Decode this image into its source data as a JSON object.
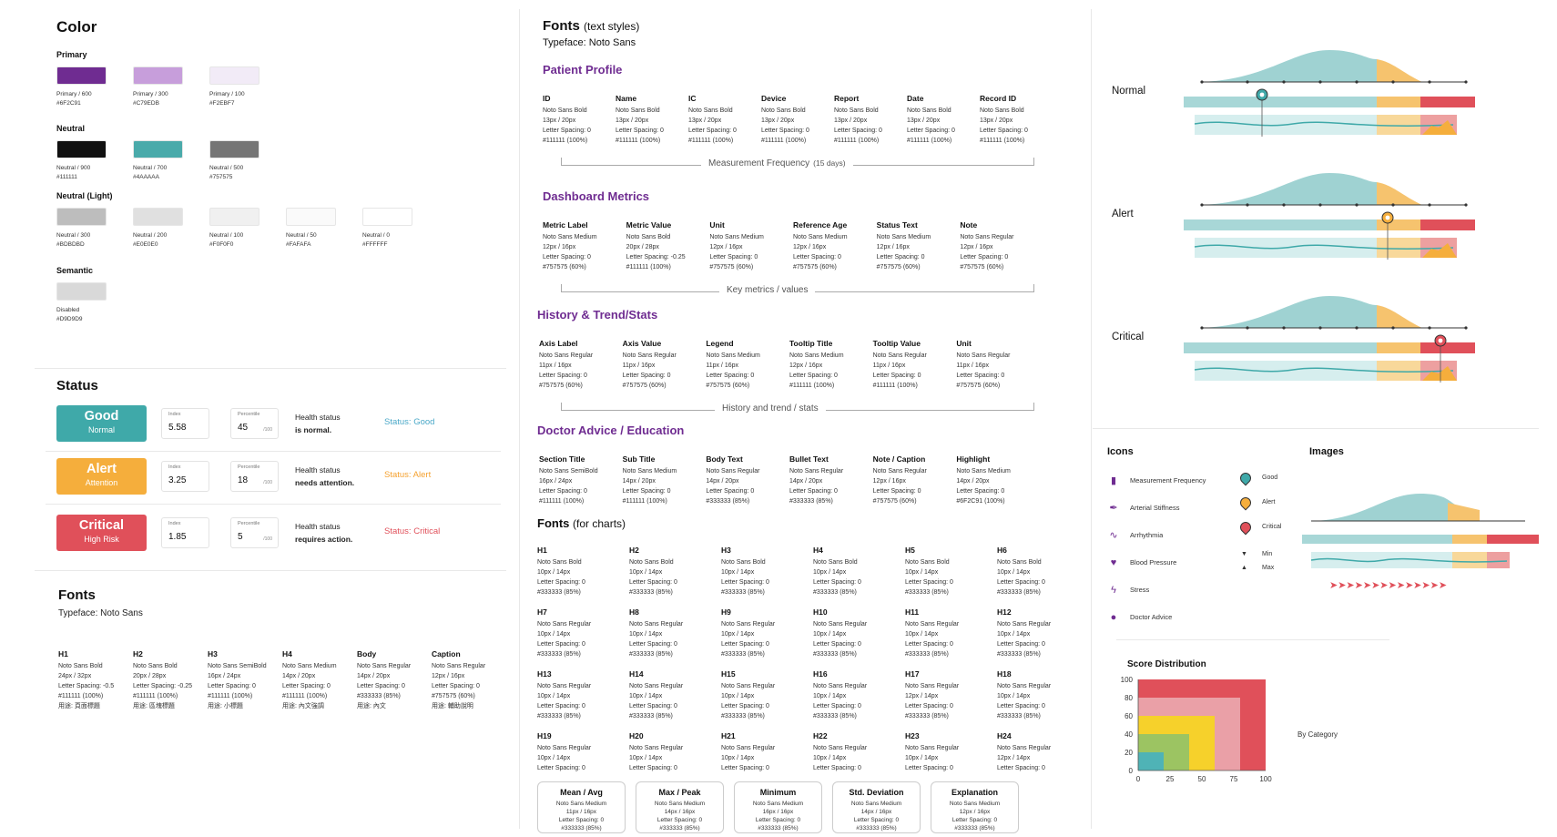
{
  "color": {
    "title": "Color",
    "groups": [
      {
        "label": "Primary",
        "swatches": [
          {
            "name": "Primary / 600",
            "hex": "#6F2C91"
          },
          {
            "name": "Primary / 300",
            "hex": "#C79EDB"
          },
          {
            "name": "Primary / 100",
            "hex": "#F2EBF7"
          }
        ]
      },
      {
        "label": "Neutral",
        "swatches": [
          {
            "name": "Neutral / 900",
            "hex": "#111111"
          },
          {
            "name": "Neutral / 700",
            "hex": "#4AAAAA"
          },
          {
            "name": "Neutral / 500",
            "hex": "#757575"
          }
        ]
      },
      {
        "label": "Neutral (Light)",
        "swatches": [
          {
            "name": "Neutral / 300",
            "hex": "#BDBDBD"
          },
          {
            "name": "Neutral / 200",
            "hex": "#E0E0E0"
          },
          {
            "name": "Neutral / 100",
            "hex": "#F0F0F0"
          },
          {
            "name": "Neutral / 50",
            "hex": "#FAFAFA"
          },
          {
            "name": "Neutral / 0",
            "hex": "#FFFFFF"
          }
        ]
      },
      {
        "label": "Semantic",
        "swatches": [
          {
            "name": "Disabled",
            "hex": "#D9D9D9"
          }
        ]
      }
    ]
  },
  "status": {
    "title": "Status",
    "rows": [
      {
        "name": "Good",
        "sub": "Normal",
        "color": "#3FA9A9",
        "index_label": "Index",
        "index": "5.58",
        "pct_label": "Percentile",
        "pct": "45",
        "unit": "/100",
        "desc1": "Health status",
        "desc2": "is normal.",
        "tag": "Status: Good",
        "tagcolor": "#4AA8C8"
      },
      {
        "name": "Alert",
        "sub": "Attention",
        "color": "#F5AE3C",
        "index_label": "Index",
        "index": "3.25",
        "pct_label": "Percentile",
        "pct": "18",
        "unit": "/100",
        "desc1": "Health status",
        "desc2": "needs attention.",
        "tag": "Status: Alert",
        "tagcolor": "#F5A12F"
      },
      {
        "name": "Critical",
        "sub": "High Risk",
        "color": "#E0505A",
        "index_label": "Index",
        "index": "1.85",
        "pct_label": "Percentile",
        "pct": "5",
        "unit": "/100",
        "desc1": "Health status",
        "desc2": "requires action.",
        "tag": "Status: Critical",
        "tagcolor": "#E0505A"
      }
    ]
  },
  "fonts": {
    "title": "Fonts",
    "typeface": "Typeface: Noto Sans",
    "items": [
      {
        "h": "H1",
        "l": [
          "Noto Sans Bold",
          "24px / 32px",
          "Letter Spacing: -0.5",
          "#111111 (100%)",
          "用途: 頁面標題"
        ]
      },
      {
        "h": "H2",
        "l": [
          "Noto Sans Bold",
          "20px / 28px",
          "Letter Spacing: -0.25",
          "#111111 (100%)",
          "用途: 區塊標題"
        ]
      },
      {
        "h": "H3",
        "l": [
          "Noto Sans SemiBold",
          "16px / 24px",
          "Letter Spacing: 0",
          "#111111 (100%)",
          "用途: 小標題"
        ]
      },
      {
        "h": "H4",
        "l": [
          "Noto Sans Medium",
          "14px / 20px",
          "Letter Spacing: 0",
          "#111111 (100%)",
          "用途: 內文強調"
        ]
      },
      {
        "h": "Body",
        "l": [
          "Noto Sans Regular",
          "14px / 20px",
          "Letter Spacing: 0",
          "#333333 (85%)",
          "用途: 內文"
        ]
      },
      {
        "h": "Caption",
        "l": [
          "Noto Sans Regular",
          "12px / 16px",
          "Letter Spacing: 0",
          "#757575 (60%)",
          "用途: 輔助說明"
        ]
      }
    ]
  },
  "textstyles": {
    "title": "Fonts",
    "title_suffix": "(text styles)",
    "typeface": "Typeface: Noto Sans",
    "sections": [
      {
        "title": "Patient Profile",
        "caption": "Measurement Frequency",
        "caption2": "(15 days)",
        "cols": [
          {
            "h": "ID",
            "l": [
              "Noto Sans Bold",
              "13px / 20px",
              "Letter Spacing: 0",
              "#111111 (100%)"
            ]
          },
          {
            "h": "Name",
            "l": [
              "Noto Sans Bold",
              "13px / 20px",
              "Letter Spacing: 0",
              "#111111 (100%)"
            ]
          },
          {
            "h": "IC",
            "l": [
              "Noto Sans Bold",
              "13px / 20px",
              "Letter Spacing: 0",
              "#111111 (100%)"
            ]
          },
          {
            "h": "Device",
            "l": [
              "Noto Sans Bold",
              "13px / 20px",
              "Letter Spacing: 0",
              "#111111 (100%)"
            ]
          },
          {
            "h": "Report",
            "l": [
              "Noto Sans Bold",
              "13px / 20px",
              "Letter Spacing: 0",
              "#111111 (100%)"
            ]
          },
          {
            "h": "Date",
            "l": [
              "Noto Sans Bold",
              "13px / 20px",
              "Letter Spacing: 0",
              "#111111 (100%)"
            ]
          },
          {
            "h": "Record ID",
            "l": [
              "Noto Sans Bold",
              "13px / 20px",
              "Letter Spacing: 0",
              "#111111 (100%)"
            ]
          }
        ]
      },
      {
        "title": "Dashboard Metrics",
        "caption": "Key metrics / values",
        "caption2": "",
        "cols": [
          {
            "h": "Metric Label",
            "l": [
              "Noto Sans Medium",
              "12px / 16px",
              "Letter Spacing: 0",
              "#757575 (60%)"
            ]
          },
          {
            "h": "Metric Value",
            "l": [
              "Noto Sans Bold",
              "20px / 28px",
              "Letter Spacing: -0.25",
              "#111111 (100%)"
            ]
          },
          {
            "h": "Unit",
            "l": [
              "Noto Sans Medium",
              "12px / 16px",
              "Letter Spacing: 0",
              "#757575 (60%)"
            ]
          },
          {
            "h": "Reference Age",
            "l": [
              "Noto Sans Medium",
              "12px / 16px",
              "Letter Spacing: 0",
              "#757575 (60%)"
            ]
          },
          {
            "h": "Status Text",
            "l": [
              "Noto Sans Medium",
              "12px / 16px",
              "Letter Spacing: 0",
              "#757575 (60%)"
            ]
          },
          {
            "h": "Note",
            "l": [
              "Noto Sans Regular",
              "12px / 16px",
              "Letter Spacing: 0",
              "#757575 (60%)"
            ]
          }
        ]
      },
      {
        "title": "History & Trend/Stats",
        "caption": "History and trend / stats",
        "caption2": "",
        "cols": [
          {
            "h": "Axis Label",
            "l": [
              "Noto Sans Regular",
              "11px / 16px",
              "Letter Spacing: 0",
              "#757575 (60%)"
            ]
          },
          {
            "h": "Axis Value",
            "l": [
              "Noto Sans Regular",
              "11px / 16px",
              "Letter Spacing: 0",
              "#757575 (60%)"
            ]
          },
          {
            "h": "Legend",
            "l": [
              "Noto Sans Medium",
              "11px / 16px",
              "Letter Spacing: 0",
              "#757575 (60%)"
            ]
          },
          {
            "h": "Tooltip Title",
            "l": [
              "Noto Sans Medium",
              "12px / 16px",
              "Letter Spacing: 0",
              "#111111 (100%)"
            ]
          },
          {
            "h": "Tooltip Value",
            "l": [
              "Noto Sans Regular",
              "11px / 16px",
              "Letter Spacing: 0",
              "#111111 (100%)"
            ]
          },
          {
            "h": "Unit",
            "l": [
              "Noto Sans Regular",
              "11px / 16px",
              "Letter Spacing: 0",
              "#757575 (60%)"
            ]
          }
        ]
      },
      {
        "title": "Doctor Advice / Education",
        "caption": "",
        "caption2": "",
        "cols": [
          {
            "h": "Section Title",
            "l": [
              "Noto Sans SemiBold",
              "16px / 24px",
              "Letter Spacing: 0",
              "#111111 (100%)"
            ]
          },
          {
            "h": "Sub Title",
            "l": [
              "Noto Sans Medium",
              "14px / 20px",
              "Letter Spacing: 0",
              "#111111 (100%)"
            ]
          },
          {
            "h": "Body Text",
            "l": [
              "Noto Sans Regular",
              "14px / 20px",
              "Letter Spacing: 0",
              "#333333 (85%)"
            ]
          },
          {
            "h": "Bullet Text",
            "l": [
              "Noto Sans Regular",
              "14px / 20px",
              "Letter Spacing: 0",
              "#333333 (85%)"
            ]
          },
          {
            "h": "Note / Caption",
            "l": [
              "Noto Sans Regular",
              "12px / 16px",
              "Letter Spacing: 0",
              "#757575 (60%)"
            ]
          },
          {
            "h": "Highlight",
            "l": [
              "Noto Sans Medium",
              "14px / 20px",
              "Letter Spacing: 0",
              "#6F2C91 (100%)"
            ]
          }
        ]
      }
    ]
  },
  "chartfonts": {
    "title": "Fonts",
    "title_suffix": "(for charts)",
    "items": [
      {
        "h": "H1",
        "l": [
          "Noto Sans Bold",
          "10px / 14px",
          "Letter Spacing: 0",
          "#333333 (85%)"
        ]
      },
      {
        "h": "H2",
        "l": [
          "Noto Sans Bold",
          "10px / 14px",
          "Letter Spacing: 0",
          "#333333 (85%)"
        ]
      },
      {
        "h": "H3",
        "l": [
          "Noto Sans Bold",
          "10px / 14px",
          "Letter Spacing: 0",
          "#333333 (85%)"
        ]
      },
      {
        "h": "H4",
        "l": [
          "Noto Sans Bold",
          "10px / 14px",
          "Letter Spacing: 0",
          "#333333 (85%)"
        ]
      },
      {
        "h": "H5",
        "l": [
          "Noto Sans Bold",
          "10px / 14px",
          "Letter Spacing: 0",
          "#333333 (85%)"
        ]
      },
      {
        "h": "H6",
        "l": [
          "Noto Sans Bold",
          "10px / 14px",
          "Letter Spacing: 0",
          "#333333 (85%)"
        ]
      },
      {
        "h": "H7",
        "l": [
          "Noto Sans Regular",
          "10px / 14px",
          "Letter Spacing: 0",
          "#333333 (85%)"
        ]
      },
      {
        "h": "H8",
        "l": [
          "Noto Sans Regular",
          "10px / 14px",
          "Letter Spacing: 0",
          "#333333 (85%)"
        ]
      },
      {
        "h": "H9",
        "l": [
          "Noto Sans Regular",
          "10px / 14px",
          "Letter Spacing: 0",
          "#333333 (85%)"
        ]
      },
      {
        "h": "H10",
        "l": [
          "Noto Sans Regular",
          "10px / 14px",
          "Letter Spacing: 0",
          "#333333 (85%)"
        ]
      },
      {
        "h": "H11",
        "l": [
          "Noto Sans Regular",
          "10px / 14px",
          "Letter Spacing: 0",
          "#333333 (85%)"
        ]
      },
      {
        "h": "H12",
        "l": [
          "Noto Sans Regular",
          "10px / 14px",
          "Letter Spacing: 0",
          "#333333 (85%)"
        ]
      },
      {
        "h": "H13",
        "l": [
          "Noto Sans Regular",
          "10px / 14px",
          "Letter Spacing: 0",
          "#333333 (85%)"
        ]
      },
      {
        "h": "H14",
        "l": [
          "Noto Sans Regular",
          "10px / 14px",
          "Letter Spacing: 0",
          "#333333 (85%)"
        ]
      },
      {
        "h": "H15",
        "l": [
          "Noto Sans Regular",
          "10px / 14px",
          "Letter Spacing: 0",
          "#333333 (85%)"
        ]
      },
      {
        "h": "H16",
        "l": [
          "Noto Sans Regular",
          "10px / 14px",
          "Letter Spacing: 0",
          "#333333 (85%)"
        ]
      },
      {
        "h": "H17",
        "l": [
          "Noto Sans Regular",
          "12px / 14px",
          "Letter Spacing: 0",
          "#333333 (85%)"
        ]
      },
      {
        "h": "H18",
        "l": [
          "Noto Sans Regular",
          "10px / 14px",
          "Letter Spacing: 0",
          "#333333 (85%)"
        ]
      },
      {
        "h": "H19",
        "l": [
          "Noto Sans Regular",
          "10px / 14px",
          "Letter Spacing: 0"
        ]
      },
      {
        "h": "H20",
        "l": [
          "Noto Sans Regular",
          "10px / 14px",
          "Letter Spacing: 0"
        ]
      },
      {
        "h": "H21",
        "l": [
          "Noto Sans Regular",
          "10px / 14px",
          "Letter Spacing: 0"
        ]
      },
      {
        "h": "H22",
        "l": [
          "Noto Sans Regular",
          "10px / 14px",
          "Letter Spacing: 0"
        ]
      },
      {
        "h": "H23",
        "l": [
          "Noto Sans Regular",
          "10px / 14px",
          "Letter Spacing: 0"
        ]
      },
      {
        "h": "H24",
        "l": [
          "Noto Sans Regular",
          "12px / 14px",
          "Letter Spacing: 0"
        ]
      }
    ],
    "stats": [
      {
        "h": "Mean / Avg",
        "l": [
          "Noto Sans Medium",
          "11px / 16px",
          "Letter Spacing: 0",
          "#333333 (85%)"
        ]
      },
      {
        "h": "Max / Peak",
        "l": [
          "Noto Sans Medium",
          "14px / 16px",
          "Letter Spacing: 0",
          "#333333 (85%)"
        ]
      },
      {
        "h": "Minimum",
        "l": [
          "Noto Sans Medium",
          "16px / 16px",
          "Letter Spacing: 0",
          "#333333 (85%)"
        ]
      },
      {
        "h": "Std. Deviation",
        "l": [
          "Noto Sans Medium",
          "14px / 16px",
          "Letter Spacing: 0",
          "#333333 (85%)"
        ]
      },
      {
        "h": "Explanation",
        "l": [
          "Noto Sans Medium",
          "12px / 16px",
          "Letter Spacing: 0",
          "#333333 (85%)"
        ]
      }
    ]
  },
  "gauges": [
    {
      "label": "Normal",
      "marker": 0.27,
      "pin": "#3FA9A9"
    },
    {
      "label": "Alert",
      "marker": 0.7,
      "pin": "#F5AE3C"
    },
    {
      "label": "Critical",
      "marker": 0.88,
      "pin": "#E0505A"
    }
  ],
  "icons": {
    "title": "Icons",
    "items": [
      {
        "icon": "bar-chart-icon",
        "glyph": "▮",
        "label": "Measurement Frequency"
      },
      {
        "icon": "feather-icon",
        "glyph": "✒",
        "label": "Arterial Stiffness"
      },
      {
        "icon": "pulse-icon",
        "glyph": "∿",
        "label": "Arrhythmia"
      },
      {
        "icon": "heart-icon",
        "glyph": "♥",
        "label": "Blood Pressure"
      },
      {
        "icon": "stress-icon",
        "glyph": "ϟ",
        "label": "Stress"
      },
      {
        "icon": "doctor-icon",
        "glyph": "●",
        "label": "Doctor Advice"
      }
    ],
    "status_icons": [
      {
        "icon": "pin-good-icon",
        "color": "#3FA9A9",
        "label": "Good"
      },
      {
        "icon": "pin-alert-icon",
        "color": "#F5AE3C",
        "label": "Alert"
      },
      {
        "icon": "pin-critical-icon",
        "color": "#E0505A",
        "label": "Critical"
      }
    ],
    "minmax": [
      {
        "icon": "triangle-down-icon",
        "glyph": "▼",
        "label": "Min"
      },
      {
        "icon": "triangle-up-icon",
        "glyph": "▲",
        "label": "Max"
      }
    ]
  },
  "images": {
    "title": "Images"
  },
  "chart_data": {
    "type": "area",
    "title": "Score Distribution",
    "legend": "By Category",
    "xticks": [
      0,
      25,
      50,
      75,
      100
    ],
    "yticks": [
      0,
      20,
      40,
      60,
      80,
      100
    ],
    "xlim": [
      0,
      100
    ],
    "ylim": [
      0,
      100
    ],
    "series": [
      {
        "value": 100,
        "color": "#E0505A"
      },
      {
        "value": 80,
        "color": "#EAA0A7"
      },
      {
        "value": 60,
        "color": "#F6D12B"
      },
      {
        "value": 40,
        "color": "#9CC462"
      },
      {
        "value": 20,
        "color": "#4FB3B6"
      }
    ]
  }
}
